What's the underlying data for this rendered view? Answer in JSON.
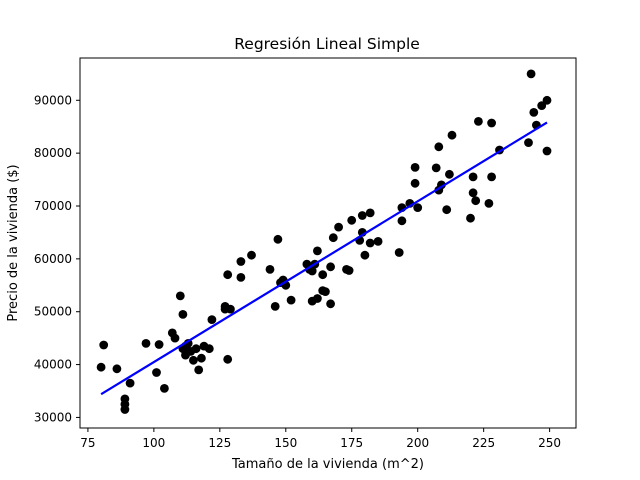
{
  "chart_data": {
    "type": "scatter",
    "title": "Regresión Lineal Simple",
    "xlabel": "Tamaño de la vivienda (m^2)",
    "ylabel": "Precio de la vivienda ($)",
    "xlim": [
      72,
      260
    ],
    "ylim": [
      28000,
      98000
    ],
    "xticks": [
      75,
      100,
      125,
      150,
      175,
      200,
      225,
      250
    ],
    "yticks": [
      30000,
      40000,
      50000,
      60000,
      70000,
      80000,
      90000
    ],
    "grid": false,
    "colors": {
      "points": "#000000",
      "regression_line": "#0000ff"
    },
    "series": [
      {
        "type": "scatter",
        "x": [
          80,
          81,
          86,
          89,
          89,
          89,
          91,
          97,
          101,
          102,
          104,
          107,
          108,
          110,
          111,
          111,
          112,
          112,
          113,
          114,
          115,
          116,
          117,
          118,
          119,
          121,
          122,
          127,
          127,
          128,
          128,
          129,
          133,
          133,
          137,
          144,
          146,
          147,
          148,
          149,
          150,
          152,
          158,
          159,
          160,
          160,
          161,
          162,
          162,
          164,
          164,
          165,
          167,
          167,
          168,
          170,
          173,
          174,
          175,
          178,
          179,
          179,
          180,
          182,
          182,
          185,
          193,
          194,
          194,
          197,
          199,
          199,
          200,
          207,
          208,
          208,
          209,
          211,
          212,
          213,
          220,
          221,
          221,
          222,
          223,
          227,
          228,
          228,
          231,
          242,
          243,
          244,
          245,
          247,
          249,
          249
        ],
        "y": [
          39500,
          43700,
          39200,
          31500,
          32500,
          33500,
          36500,
          44000,
          38500,
          43800,
          35500,
          46000,
          45000,
          53000,
          49500,
          43000,
          41800,
          43500,
          44000,
          42500,
          40800,
          43000,
          39000,
          41200,
          43500,
          43000,
          48500,
          50500,
          51000,
          57000,
          41000,
          50500,
          59500,
          56500,
          60700,
          58000,
          51000,
          63700,
          55500,
          56000,
          55000,
          52200,
          59000,
          58000,
          52000,
          57700,
          59000,
          52500,
          61500,
          57000,
          54000,
          53800,
          51500,
          58500,
          64000,
          66000,
          58000,
          57800,
          67300,
          63500,
          65000,
          68200,
          60700,
          63000,
          68700,
          63300,
          61200,
          69700,
          67200,
          70500,
          74300,
          77300,
          69700,
          77200,
          81200,
          73000,
          74000,
          69300,
          76000,
          83400,
          67700,
          72500,
          75500,
          71000,
          86000,
          70500,
          85700,
          75500,
          80600,
          82000,
          95000,
          87700,
          85300,
          89000,
          90000,
          80400
        ]
      },
      {
        "type": "line",
        "x": [
          80,
          249
        ],
        "y": [
          34400,
          85800
        ]
      }
    ]
  }
}
